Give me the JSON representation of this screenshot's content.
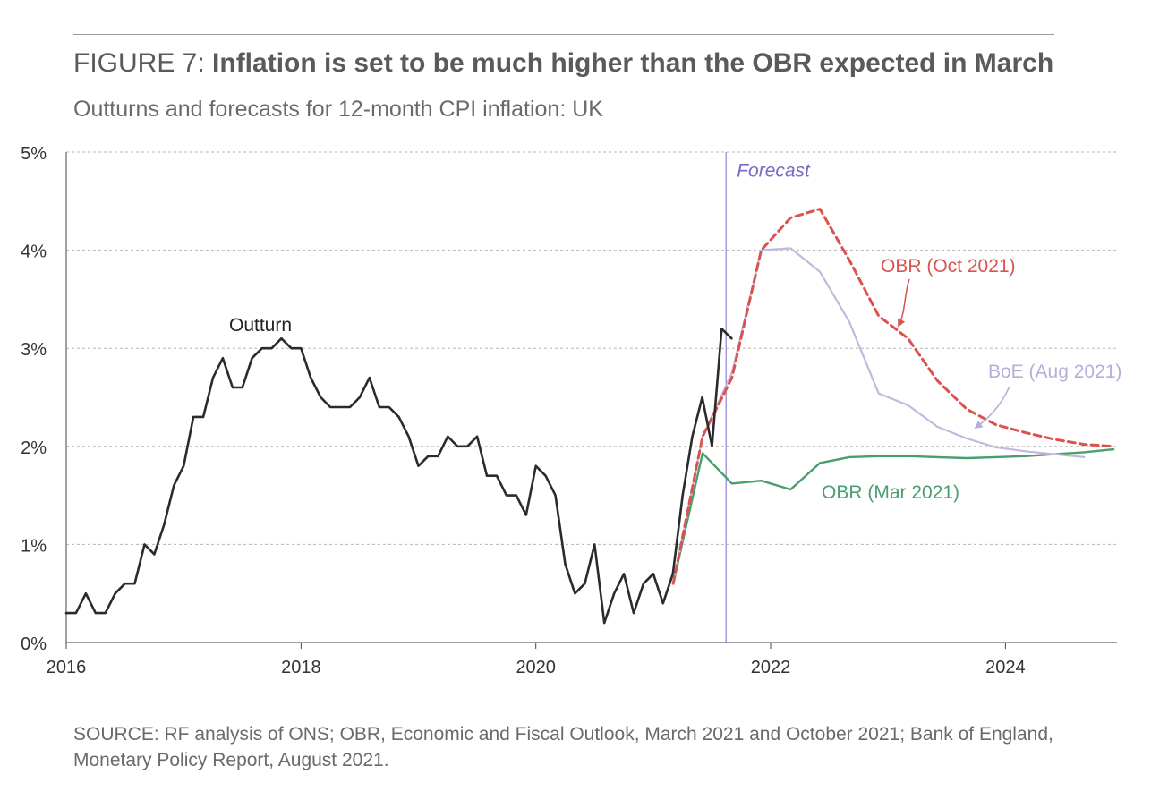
{
  "title": {
    "prefix": "FIGURE 7: ",
    "main": "Inflation is set to be much higher than the OBR expected in March"
  },
  "subtitle": "Outturns and forecasts for 12-month CPI inflation: UK",
  "source": "SOURCE: RF analysis of ONS; OBR, Economic and Fiscal Outlook, March 2021 and October 2021; Bank of England, Monetary Policy Report, August 2021.",
  "colors": {
    "outturn": "#2b2b2b",
    "obr_oct": "#d9534f",
    "boe": "#c3b8e0",
    "obr_mar": "#4a9e6e",
    "forecast": "#7b68c8",
    "grid": "#b5b5b5"
  },
  "chart_data": {
    "type": "line",
    "xlim": [
      2016.0,
      2024.95
    ],
    "ylim": [
      0,
      5
    ],
    "x_ticks": [
      {
        "value": 2016,
        "label": "2016"
      },
      {
        "value": 2018,
        "label": "2018"
      },
      {
        "value": 2020,
        "label": "2020"
      },
      {
        "value": 2022,
        "label": "2022"
      },
      {
        "value": 2024,
        "label": "2024"
      }
    ],
    "y_ticks": [
      {
        "value": 0,
        "label": "0%"
      },
      {
        "value": 1,
        "label": "1%"
      },
      {
        "value": 2,
        "label": "2%"
      },
      {
        "value": 3,
        "label": "3%"
      },
      {
        "value": 4,
        "label": "4%"
      },
      {
        "value": 5,
        "label": "5%"
      }
    ],
    "grid": "horizontal-dashed",
    "forecast_line": {
      "x": 2021.62,
      "label": "Forecast"
    },
    "series": [
      {
        "name": "Outturn",
        "style": "solid",
        "points": [
          [
            2016.0,
            0.3
          ],
          [
            2016.083,
            0.3
          ],
          [
            2016.167,
            0.5
          ],
          [
            2016.25,
            0.3
          ],
          [
            2016.333,
            0.3
          ],
          [
            2016.417,
            0.5
          ],
          [
            2016.5,
            0.6
          ],
          [
            2016.583,
            0.6
          ],
          [
            2016.667,
            1.0
          ],
          [
            2016.75,
            0.9
          ],
          [
            2016.833,
            1.2
          ],
          [
            2016.917,
            1.6
          ],
          [
            2017.0,
            1.8
          ],
          [
            2017.083,
            2.3
          ],
          [
            2017.167,
            2.3
          ],
          [
            2017.25,
            2.7
          ],
          [
            2017.333,
            2.9
          ],
          [
            2017.417,
            2.6
          ],
          [
            2017.5,
            2.6
          ],
          [
            2017.583,
            2.9
          ],
          [
            2017.667,
            3.0
          ],
          [
            2017.75,
            3.0
          ],
          [
            2017.833,
            3.1
          ],
          [
            2017.917,
            3.0
          ],
          [
            2018.0,
            3.0
          ],
          [
            2018.083,
            2.7
          ],
          [
            2018.167,
            2.5
          ],
          [
            2018.25,
            2.4
          ],
          [
            2018.333,
            2.4
          ],
          [
            2018.417,
            2.4
          ],
          [
            2018.5,
            2.5
          ],
          [
            2018.583,
            2.7
          ],
          [
            2018.667,
            2.4
          ],
          [
            2018.75,
            2.4
          ],
          [
            2018.833,
            2.3
          ],
          [
            2018.917,
            2.1
          ],
          [
            2019.0,
            1.8
          ],
          [
            2019.083,
            1.9
          ],
          [
            2019.167,
            1.9
          ],
          [
            2019.25,
            2.1
          ],
          [
            2019.333,
            2.0
          ],
          [
            2019.417,
            2.0
          ],
          [
            2019.5,
            2.1
          ],
          [
            2019.583,
            1.7
          ],
          [
            2019.667,
            1.7
          ],
          [
            2019.75,
            1.5
          ],
          [
            2019.833,
            1.5
          ],
          [
            2019.917,
            1.3
          ],
          [
            2020.0,
            1.8
          ],
          [
            2020.083,
            1.7
          ],
          [
            2020.167,
            1.5
          ],
          [
            2020.25,
            0.8
          ],
          [
            2020.333,
            0.5
          ],
          [
            2020.417,
            0.6
          ],
          [
            2020.5,
            1.0
          ],
          [
            2020.583,
            0.2
          ],
          [
            2020.667,
            0.5
          ],
          [
            2020.75,
            0.7
          ],
          [
            2020.833,
            0.3
          ],
          [
            2020.917,
            0.6
          ],
          [
            2021.0,
            0.7
          ],
          [
            2021.083,
            0.4
          ],
          [
            2021.167,
            0.7
          ],
          [
            2021.25,
            1.5
          ],
          [
            2021.333,
            2.1
          ],
          [
            2021.417,
            2.5
          ],
          [
            2021.5,
            2.0
          ],
          [
            2021.583,
            3.2
          ],
          [
            2021.667,
            3.1
          ]
        ]
      },
      {
        "name": "OBR (Oct 2021)",
        "style": "dashed",
        "points": [
          [
            2021.17,
            0.6
          ],
          [
            2021.42,
            2.1
          ],
          [
            2021.67,
            2.7
          ],
          [
            2021.92,
            4.0
          ],
          [
            2022.17,
            4.33
          ],
          [
            2022.42,
            4.42
          ],
          [
            2022.67,
            3.9
          ],
          [
            2022.92,
            3.33
          ],
          [
            2023.17,
            3.1
          ],
          [
            2023.42,
            2.67
          ],
          [
            2023.67,
            2.38
          ],
          [
            2023.92,
            2.22
          ],
          [
            2024.17,
            2.14
          ],
          [
            2024.42,
            2.07
          ],
          [
            2024.67,
            2.02
          ],
          [
            2024.92,
            2.0
          ]
        ]
      },
      {
        "name": "BoE (Aug 2021)",
        "style": "solid",
        "points": [
          [
            2021.17,
            0.6
          ],
          [
            2021.42,
            2.1
          ],
          [
            2021.67,
            2.75
          ],
          [
            2021.92,
            4.0
          ],
          [
            2022.17,
            4.02
          ],
          [
            2022.42,
            3.78
          ],
          [
            2022.67,
            3.27
          ],
          [
            2022.92,
            2.54
          ],
          [
            2023.17,
            2.42
          ],
          [
            2023.42,
            2.2
          ],
          [
            2023.67,
            2.08
          ],
          [
            2023.92,
            1.99
          ],
          [
            2024.17,
            1.95
          ],
          [
            2024.42,
            1.92
          ],
          [
            2024.67,
            1.89
          ]
        ]
      },
      {
        "name": "OBR (Mar 2021)",
        "style": "solid",
        "points": [
          [
            2021.17,
            0.6
          ],
          [
            2021.42,
            1.93
          ],
          [
            2021.67,
            1.62
          ],
          [
            2021.92,
            1.65
          ],
          [
            2022.17,
            1.56
          ],
          [
            2022.42,
            1.83
          ],
          [
            2022.67,
            1.89
          ],
          [
            2022.92,
            1.9
          ],
          [
            2023.17,
            1.9
          ],
          [
            2023.42,
            1.89
          ],
          [
            2023.67,
            1.88
          ],
          [
            2023.92,
            1.89
          ],
          [
            2024.17,
            1.9
          ],
          [
            2024.42,
            1.92
          ],
          [
            2024.67,
            1.94
          ],
          [
            2024.92,
            1.97
          ]
        ]
      }
    ],
    "annotations": [
      {
        "text": "Outturn",
        "series": "Outturn"
      },
      {
        "text": "OBR (Oct 2021)",
        "series": "OBR (Oct 2021)"
      },
      {
        "text": "BoE (Aug 2021)",
        "series": "BoE (Aug 2021)"
      },
      {
        "text": "OBR (Mar 2021)",
        "series": "OBR (Mar 2021)"
      }
    ]
  }
}
